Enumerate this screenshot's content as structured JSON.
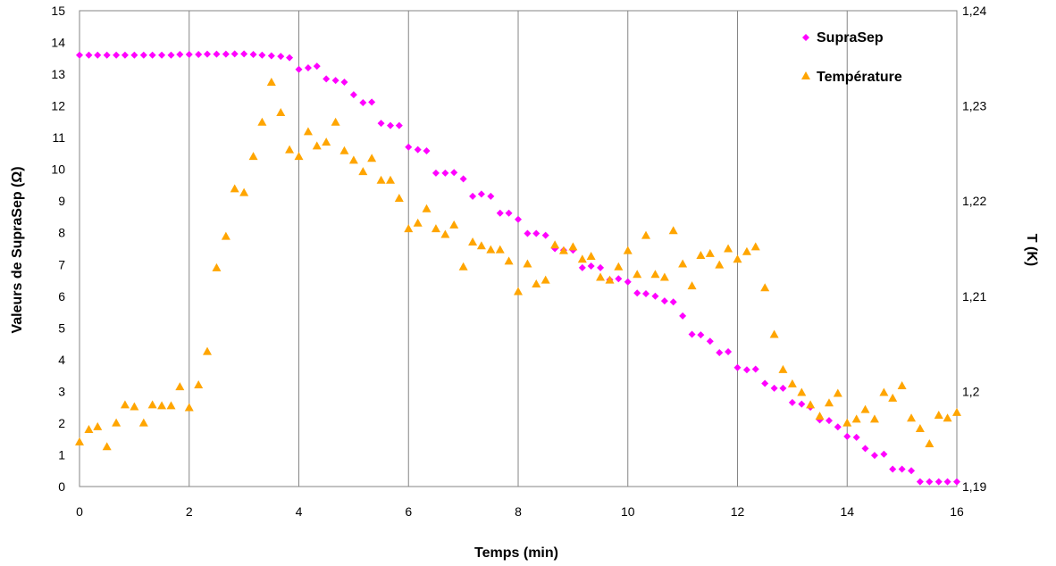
{
  "chart_data": {
    "type": "scatter",
    "xlabel": "Temps (min)",
    "ylabel": "Valeurs de SupraSep (Ω)",
    "y2label": "T (K)",
    "xlim": [
      0,
      16
    ],
    "ylim": [
      0,
      15
    ],
    "y2lim": [
      1.19,
      1.24
    ],
    "x_ticks": [
      "0",
      "2",
      "4",
      "6",
      "8",
      "10",
      "12",
      "14",
      "16"
    ],
    "y_ticks": [
      "0",
      "1",
      "2",
      "3",
      "4",
      "5",
      "6",
      "7",
      "8",
      "9",
      "10",
      "11",
      "12",
      "13",
      "14",
      "15"
    ],
    "y2_ticks": [
      "1,19",
      "1,2",
      "1,21",
      "1,22",
      "1,23",
      "1,24"
    ],
    "grid": "vertical",
    "legend_position": "top-right",
    "series": [
      {
        "name": "SupraSep",
        "axis": "left",
        "marker": "diamond",
        "color": "#FF00FF",
        "points": [
          [
            0,
            13.6
          ],
          [
            0.17,
            13.6
          ],
          [
            0.33,
            13.6
          ],
          [
            0.5,
            13.6
          ],
          [
            0.67,
            13.6
          ],
          [
            0.83,
            13.6
          ],
          [
            1.0,
            13.6
          ],
          [
            1.17,
            13.6
          ],
          [
            1.33,
            13.6
          ],
          [
            1.5,
            13.6
          ],
          [
            1.67,
            13.6
          ],
          [
            1.83,
            13.62
          ],
          [
            2.0,
            13.62
          ],
          [
            2.17,
            13.62
          ],
          [
            2.33,
            13.63
          ],
          [
            2.5,
            13.63
          ],
          [
            2.67,
            13.63
          ],
          [
            2.83,
            13.64
          ],
          [
            3.0,
            13.64
          ],
          [
            3.17,
            13.62
          ],
          [
            3.33,
            13.6
          ],
          [
            3.5,
            13.58
          ],
          [
            3.67,
            13.56
          ],
          [
            3.83,
            13.52
          ],
          [
            4.0,
            13.15
          ],
          [
            4.17,
            13.2
          ],
          [
            4.33,
            13.25
          ],
          [
            4.5,
            12.85
          ],
          [
            4.67,
            12.8
          ],
          [
            4.83,
            12.75
          ],
          [
            5.0,
            12.35
          ],
          [
            5.17,
            12.1
          ],
          [
            5.33,
            12.12
          ],
          [
            5.5,
            11.45
          ],
          [
            5.67,
            11.38
          ],
          [
            5.83,
            11.38
          ],
          [
            6.0,
            10.7
          ],
          [
            6.17,
            10.62
          ],
          [
            6.33,
            10.58
          ],
          [
            6.5,
            9.88
          ],
          [
            6.67,
            9.88
          ],
          [
            6.83,
            9.9
          ],
          [
            7.0,
            9.7
          ],
          [
            7.17,
            9.15
          ],
          [
            7.33,
            9.22
          ],
          [
            7.5,
            9.15
          ],
          [
            7.67,
            8.62
          ],
          [
            7.83,
            8.62
          ],
          [
            8.0,
            8.42
          ],
          [
            8.17,
            7.98
          ],
          [
            8.33,
            7.98
          ],
          [
            8.5,
            7.92
          ],
          [
            8.67,
            7.5
          ],
          [
            8.83,
            7.45
          ],
          [
            9.0,
            7.45
          ],
          [
            9.17,
            6.9
          ],
          [
            9.33,
            6.95
          ],
          [
            9.5,
            6.9
          ],
          [
            9.67,
            6.52
          ],
          [
            9.83,
            6.55
          ],
          [
            10.0,
            6.45
          ],
          [
            10.17,
            6.1
          ],
          [
            10.33,
            6.08
          ],
          [
            10.5,
            6.0
          ],
          [
            10.67,
            5.85
          ],
          [
            10.83,
            5.82
          ],
          [
            11.0,
            5.38
          ],
          [
            11.17,
            4.8
          ],
          [
            11.33,
            4.78
          ],
          [
            11.5,
            4.58
          ],
          [
            11.67,
            4.22
          ],
          [
            11.83,
            4.25
          ],
          [
            12.0,
            3.75
          ],
          [
            12.17,
            3.68
          ],
          [
            12.33,
            3.7
          ],
          [
            12.5,
            3.25
          ],
          [
            12.67,
            3.1
          ],
          [
            12.83,
            3.1
          ],
          [
            13.0,
            2.65
          ],
          [
            13.17,
            2.6
          ],
          [
            13.33,
            2.5
          ],
          [
            13.5,
            2.1
          ],
          [
            13.67,
            2.08
          ],
          [
            13.83,
            1.88
          ],
          [
            14.0,
            1.58
          ],
          [
            14.17,
            1.55
          ],
          [
            14.33,
            1.2
          ],
          [
            14.5,
            0.98
          ],
          [
            14.67,
            1.02
          ],
          [
            14.83,
            0.55
          ],
          [
            15.0,
            0.55
          ],
          [
            15.17,
            0.5
          ],
          [
            15.33,
            0.15
          ],
          [
            15.5,
            0.15
          ],
          [
            15.67,
            0.15
          ],
          [
            15.83,
            0.15
          ],
          [
            16.0,
            0.15
          ]
        ]
      },
      {
        "name": "Température",
        "axis": "right",
        "marker": "triangle",
        "color": "#FFA500",
        "points": [
          [
            0,
            1.1947
          ],
          [
            0.17,
            1.196
          ],
          [
            0.33,
            1.1963
          ],
          [
            0.5,
            1.1942
          ],
          [
            0.67,
            1.1967
          ],
          [
            0.83,
            1.1986
          ],
          [
            1.0,
            1.1984
          ],
          [
            1.17,
            1.1967
          ],
          [
            1.33,
            1.1986
          ],
          [
            1.5,
            1.1985
          ],
          [
            1.67,
            1.1985
          ],
          [
            1.83,
            1.2005
          ],
          [
            2.0,
            1.1983
          ],
          [
            2.17,
            1.2007
          ],
          [
            2.33,
            1.2042
          ],
          [
            2.5,
            1.213
          ],
          [
            2.67,
            1.2163
          ],
          [
            2.83,
            1.2213
          ],
          [
            3.0,
            1.2209
          ],
          [
            3.17,
            1.2247
          ],
          [
            3.33,
            1.2283
          ],
          [
            3.5,
            1.2325
          ],
          [
            3.67,
            1.2293
          ],
          [
            3.83,
            1.2254
          ],
          [
            4.0,
            1.2247
          ],
          [
            4.17,
            1.2273
          ],
          [
            4.33,
            1.2258
          ],
          [
            4.5,
            1.2262
          ],
          [
            4.67,
            1.2283
          ],
          [
            4.83,
            1.2253
          ],
          [
            5.0,
            1.2243
          ],
          [
            5.17,
            1.2231
          ],
          [
            5.33,
            1.2245
          ],
          [
            5.5,
            1.2222
          ],
          [
            5.67,
            1.2222
          ],
          [
            5.83,
            1.2203
          ],
          [
            6.0,
            1.2171
          ],
          [
            6.17,
            1.2177
          ],
          [
            6.33,
            1.2192
          ],
          [
            6.5,
            1.2171
          ],
          [
            6.67,
            1.2165
          ],
          [
            6.83,
            1.2175
          ],
          [
            7.0,
            1.2131
          ],
          [
            7.17,
            1.2157
          ],
          [
            7.33,
            1.2153
          ],
          [
            7.5,
            1.2149
          ],
          [
            7.67,
            1.2149
          ],
          [
            7.83,
            1.2137
          ],
          [
            8.0,
            1.2105
          ],
          [
            8.17,
            1.2134
          ],
          [
            8.33,
            1.2113
          ],
          [
            8.5,
            1.2117
          ],
          [
            8.67,
            1.2154
          ],
          [
            8.83,
            1.2148
          ],
          [
            9.0,
            1.2152
          ],
          [
            9.17,
            1.2139
          ],
          [
            9.33,
            1.2142
          ],
          [
            9.5,
            1.212
          ],
          [
            9.67,
            1.2117
          ],
          [
            9.83,
            1.2131
          ],
          [
            10.0,
            1.2148
          ],
          [
            10.17,
            1.2123
          ],
          [
            10.33,
            1.2164
          ],
          [
            10.5,
            1.2123
          ],
          [
            10.67,
            1.212
          ],
          [
            10.83,
            1.2169
          ],
          [
            11.0,
            1.2134
          ],
          [
            11.17,
            1.2111
          ],
          [
            11.33,
            1.2143
          ],
          [
            11.5,
            1.2145
          ],
          [
            11.67,
            1.2133
          ],
          [
            11.83,
            1.215
          ],
          [
            12.0,
            1.2139
          ],
          [
            12.17,
            1.2147
          ],
          [
            12.33,
            1.2152
          ],
          [
            12.5,
            1.2109
          ],
          [
            12.67,
            1.206
          ],
          [
            12.83,
            1.2023
          ],
          [
            13.0,
            1.2008
          ],
          [
            13.17,
            1.1999
          ],
          [
            13.33,
            1.1986
          ],
          [
            13.5,
            1.1974
          ],
          [
            13.67,
            1.1988
          ],
          [
            13.83,
            1.1998
          ],
          [
            14.0,
            1.1967
          ],
          [
            14.17,
            1.1971
          ],
          [
            14.33,
            1.1981
          ],
          [
            14.5,
            1.1971
          ],
          [
            14.67,
            1.1999
          ],
          [
            14.83,
            1.1993
          ],
          [
            15.0,
            1.2006
          ],
          [
            15.17,
            1.1972
          ],
          [
            15.33,
            1.1961
          ],
          [
            15.5,
            1.1945
          ],
          [
            15.67,
            1.1975
          ],
          [
            15.83,
            1.1972
          ],
          [
            16.0,
            1.1978
          ]
        ]
      }
    ]
  }
}
